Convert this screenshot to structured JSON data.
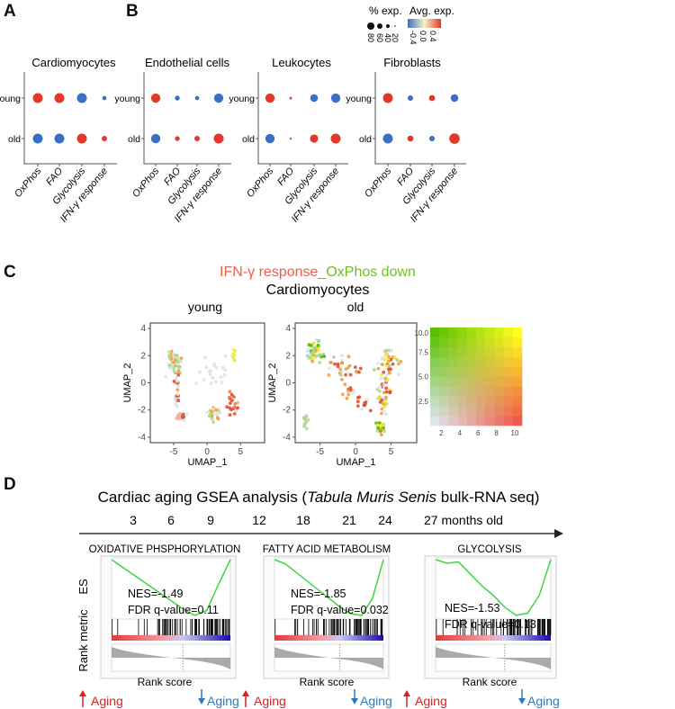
{
  "panel_labels": {
    "A": "A",
    "B": "B",
    "C": "C",
    "D": "D"
  },
  "legend": {
    "size_title": "% exp.",
    "size_values": [
      "80",
      "60",
      "40",
      "20"
    ],
    "color_title": "Avg. exp.",
    "color_ticks": [
      "-0.4",
      "0.0",
      "0.4"
    ],
    "colors": {
      "low": "#3b6fc4",
      "mid": "#f7f3c9",
      "high": "#e2382b"
    }
  },
  "chart_data": [
    {
      "type": "dotplot",
      "rows": [
        "young",
        "old"
      ],
      "categories": [
        "OxPhos",
        "FAO",
        "Glycolysis",
        "IFN-γ response"
      ],
      "panels": [
        {
          "title": "Cardiomyocytes",
          "pct": [
            [
              80,
              80,
              80,
              30
            ],
            [
              80,
              80,
              80,
              40
            ]
          ],
          "avg": [
            [
              0.4,
              0.4,
              -0.4,
              -0.4
            ],
            [
              -0.4,
              -0.4,
              0.4,
              0.4
            ]
          ]
        },
        {
          "title": "Endothelial cells",
          "pct": [
            [
              75,
              35,
              30,
              75
            ],
            [
              75,
              35,
              40,
              80
            ]
          ],
          "avg": [
            [
              0.4,
              -0.4,
              -0.4,
              -0.4
            ],
            [
              -0.4,
              0.4,
              0.4,
              0.4
            ]
          ]
        },
        {
          "title": "Leukocytes",
          "pct": [
            [
              75,
              15,
              60,
              75
            ],
            [
              75,
              10,
              65,
              80
            ]
          ],
          "avg": [
            [
              0.4,
              0.4,
              -0.4,
              -0.4
            ],
            [
              -0.4,
              -0.4,
              0.4,
              0.4
            ]
          ]
        },
        {
          "title": "Fibroblasts",
          "pct": [
            [
              80,
              40,
              45,
              60
            ],
            [
              80,
              45,
              40,
              85
            ]
          ],
          "avg": [
            [
              0.4,
              -0.4,
              0.4,
              -0.4
            ],
            [
              -0.4,
              0.4,
              -0.4,
              0.4
            ]
          ]
        }
      ]
    },
    {
      "type": "scatter",
      "title_red": "IFN-γ response",
      "title_green": "_OxPhos down",
      "subtitle": "Cardiomyocytes",
      "xlabel": "UMAP_1",
      "ylabel": "UMAP_2",
      "xticks": [
        "-5",
        "0",
        "5"
      ],
      "yticks": [
        "4",
        "2",
        "0",
        "-2",
        "-4"
      ],
      "xlim": [
        -8.5,
        8.6
      ],
      "ylim": [
        -4.4,
        4.4
      ],
      "facets": [
        {
          "title": "young",
          "clusters": [
            {
              "x": -5,
              "y": 1.5,
              "sx": 0.8,
              "sy": 0.7,
              "n": 40,
              "colors": [
                "#a8d49a",
                "#c8e0b8",
                "#d6e6ea",
                "#f0a040"
              ]
            },
            {
              "x": -4.5,
              "y": -0.5,
              "sx": 0.3,
              "sy": 1.3,
              "n": 25,
              "colors": [
                "#d6e6ea",
                "#d6e6ea",
                "#e04a3a",
                "#f0a040"
              ]
            },
            {
              "x": -4,
              "y": -2.5,
              "sx": 0.8,
              "sy": 0.2,
              "n": 20,
              "colors": [
                "#d6e6ea",
                "#e04a3a",
                "#f0b0a0"
              ]
            },
            {
              "x": 1,
              "y": -2.3,
              "sx": 0.7,
              "sy": 0.4,
              "n": 25,
              "colors": [
                "#b8d890",
                "#d6e6ea",
                "#f0a040"
              ]
            },
            {
              "x": 4,
              "y": -1.6,
              "sx": 0.7,
              "sy": 0.7,
              "n": 22,
              "colors": [
                "#e04a3a",
                "#f0b0a0",
                "#d6e6ea",
                "#f07a40"
              ]
            },
            {
              "x": 4,
              "y": 2,
              "sx": 0.2,
              "sy": 0.3,
              "n": 10,
              "colors": [
                "#f5e82a",
                "#f0f050"
              ]
            },
            {
              "x": 0.5,
              "y": 0.8,
              "sx": 2.5,
              "sy": 0.8,
              "n": 20,
              "colors": [
                "#d6e6ea"
              ]
            }
          ]
        },
        {
          "title": "old",
          "clusters": [
            {
              "x": -5.8,
              "y": 2.3,
              "sx": 0.9,
              "sy": 0.6,
              "n": 55,
              "colors": [
                "#4cb800",
                "#a8d49a",
                "#f5e82a",
                "#f0a040",
                "#d6e6ea"
              ]
            },
            {
              "x": -2,
              "y": 1,
              "sx": 2,
              "sy": 0.8,
              "n": 30,
              "colors": [
                "#d6e6ea",
                "#a8d49a",
                "#f0a040",
                "#e04a3a"
              ]
            },
            {
              "x": -1,
              "y": -0.6,
              "sx": 0.8,
              "sy": 0.5,
              "n": 12,
              "colors": [
                "#e04a3a",
                "#f0a040",
                "#d6e6ea"
              ]
            },
            {
              "x": 4.5,
              "y": 1.5,
              "sx": 1.5,
              "sy": 0.8,
              "n": 40,
              "colors": [
                "#f5e82a",
                "#e04a3a",
                "#f0a040",
                "#d6e6ea",
                "#a8d49a"
              ]
            },
            {
              "x": 4,
              "y": -1,
              "sx": 0.8,
              "sy": 1.1,
              "n": 40,
              "colors": [
                "#f0a040",
                "#e04a3a",
                "#b8d890",
                "#d6e6ea",
                "#f5e82a"
              ]
            },
            {
              "x": 3.5,
              "y": -3.3,
              "sx": 0.5,
              "sy": 0.4,
              "n": 22,
              "colors": [
                "#f5e82a",
                "#f0a040",
                "#4cb800",
                "#b8d890"
              ]
            },
            {
              "x": -7,
              "y": -2.8,
              "sx": 0.3,
              "sy": 0.5,
              "n": 12,
              "colors": [
                "#a8d49a",
                "#b8d890"
              ]
            },
            {
              "x": 1,
              "y": -1.5,
              "sx": 0.8,
              "sy": 0.5,
              "n": 12,
              "colors": [
                "#d6e6ea",
                "#e04a3a"
              ]
            }
          ]
        }
      ],
      "blend_legend": {
        "xticks": [
          "2",
          "4",
          "6",
          "8",
          "10"
        ],
        "yticks": [
          "2.5",
          "5.0",
          "7.5",
          "10.0"
        ],
        "corners": {
          "low_low": "#dbe6ea",
          "high_y": "#58c000",
          "high_x": "#f05a4a",
          "high_both": "#ffff20"
        }
      }
    },
    {
      "type": "line",
      "title_pre": "Cardiac aging GSEA analysis (",
      "title_italic": "Tabula Muris Senis",
      "title_post": " bulk-RNA seq)",
      "timeline": [
        "3",
        "6",
        "9",
        "12",
        "18",
        "21",
        "24",
        "27 months old"
      ],
      "es_label": "ES",
      "rank_metric_label": "Rank metric",
      "xlabel": "Rank score",
      "up_label": "Aging",
      "down_label": "Aging",
      "panels": [
        {
          "title": "OXIDATIVE PHSPHORYLATION",
          "nes": "NES=-1.49",
          "fdr": "FDR q-value=0.11",
          "es": [
            0,
            -0.1,
            -0.2,
            -0.3,
            -0.4,
            -0.5,
            -0.6,
            -0.68,
            -0.62,
            -0.3,
            0
          ]
        },
        {
          "title": "FATTY ACID METABOLISM",
          "nes": "NES=-1.85",
          "fdr": "FDR q-value=0.032",
          "es": [
            0,
            -0.05,
            -0.15,
            -0.25,
            -0.35,
            -0.45,
            -0.55,
            -0.63,
            -0.65,
            -0.45,
            0
          ]
        },
        {
          "title": "GLYCOLYSIS",
          "nes": "NES=-1.53",
          "fdr": "FDR q-value=0.13",
          "es": [
            0,
            -0.03,
            -0.02,
            -0.12,
            -0.22,
            -0.3,
            -0.4,
            -0.47,
            -0.45,
            -0.3,
            0
          ]
        }
      ]
    }
  ]
}
